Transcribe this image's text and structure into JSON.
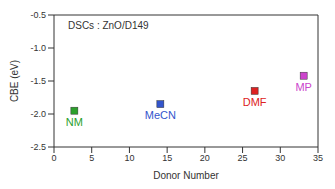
{
  "chart_data": {
    "type": "scatter",
    "xlabel": "Donor Number",
    "ylabel": "CBE (eV)",
    "annotations": [
      "DSCs : ZnO/D149"
    ],
    "x": [
      2.7,
      14.1,
      26.6,
      33.1
    ],
    "values": [
      -1.95,
      -1.85,
      -1.65,
      -1.42
    ],
    "point_labels": [
      "NM",
      "MeCN",
      "DMF",
      "MP"
    ],
    "colors": [
      "#2ca02c",
      "#3355cc",
      "#dd2222",
      "#cc44cc"
    ],
    "marker": "square",
    "xlim": [
      0,
      35
    ],
    "xticks": [
      0,
      5,
      10,
      15,
      20,
      25,
      30,
      35
    ],
    "ylim": [
      -2.5,
      -0.5
    ],
    "yticks": [
      -2.5,
      {
        "value": -2.0,
        "label": "-2.0"
      },
      -1.5,
      {
        "value": -1.0,
        "label": "-1.0"
      },
      -0.5
    ],
    "grid": false
  }
}
